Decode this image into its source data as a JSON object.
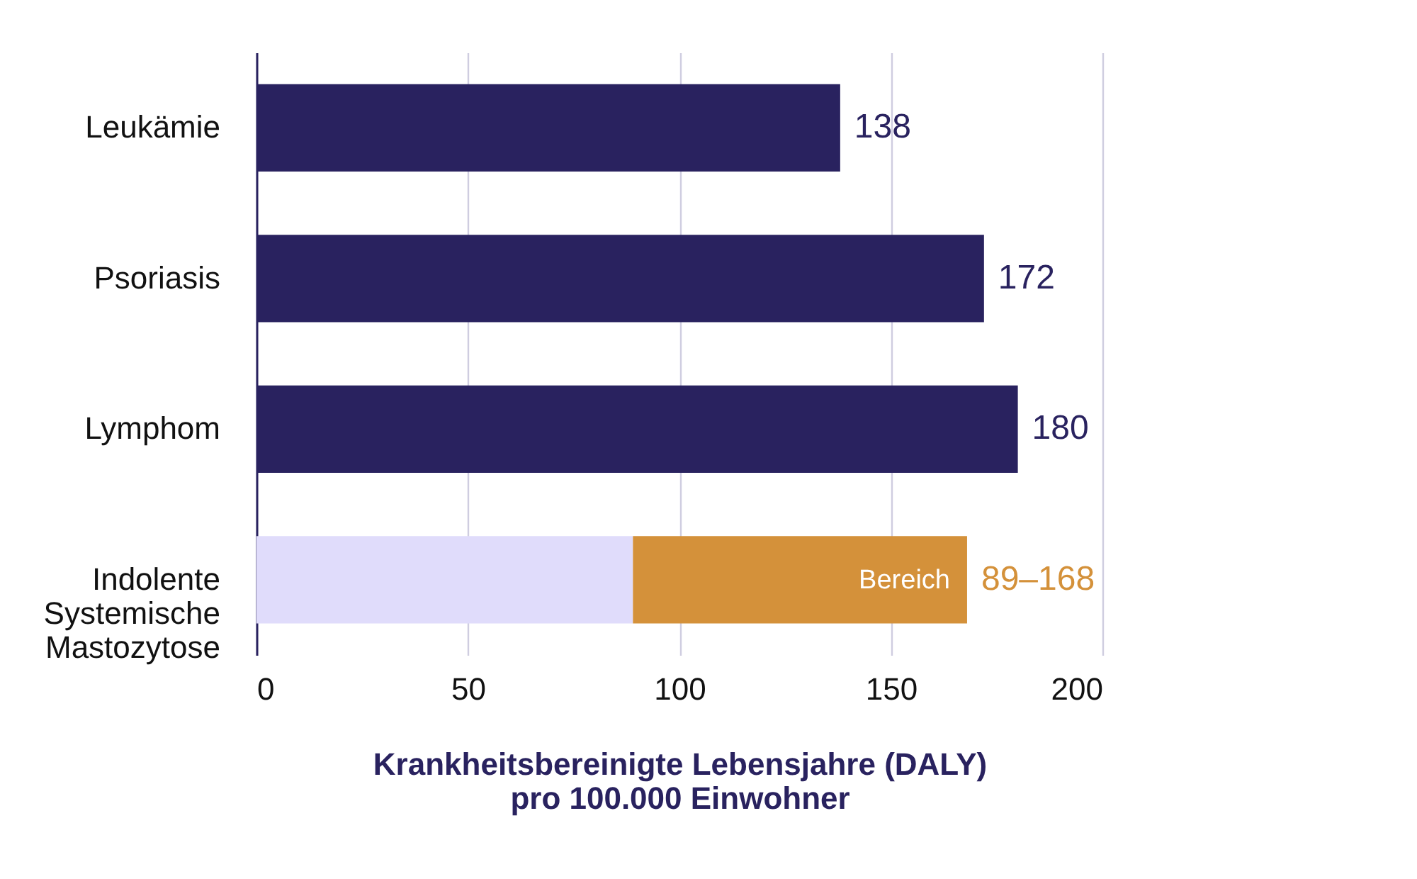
{
  "chart_data": {
    "type": "bar",
    "orientation": "horizontal",
    "stacked": true,
    "categories": [
      "Leukämie",
      "Psoriasis",
      "Lymphom",
      "Indolente Systemische Mastozytose"
    ],
    "series": [
      {
        "color": "#29225f",
        "values": [
          138,
          172,
          180,
          null
        ],
        "value_labels": [
          "138",
          "172",
          "180",
          null
        ]
      },
      {
        "color": "#e0dcfb",
        "values": [
          null,
          null,
          null,
          89
        ],
        "value_labels": [
          null,
          null,
          null,
          null
        ]
      },
      {
        "color": "#d4913a",
        "values": [
          null,
          null,
          null,
          79
        ],
        "value_labels": [
          null,
          null,
          null,
          "89–168"
        ]
      }
    ],
    "xlim": [
      0,
      200
    ],
    "xticks": [
      0,
      50,
      100,
      150,
      200
    ],
    "grid": "x",
    "legend": false,
    "xlabel": "Krankheitsbereinigte Lebensjahre (DALY)\npro 100.000 Einwohner",
    "annotations": [
      {
        "text": "Bereich",
        "x": 168,
        "y": "Indolente Systemische Mastozytose"
      }
    ]
  }
}
